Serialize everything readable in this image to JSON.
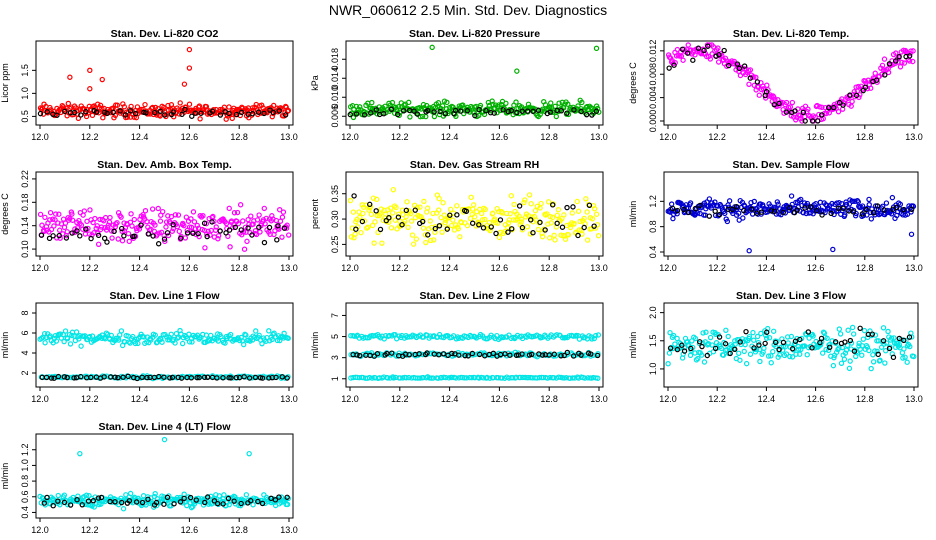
{
  "page_title": "NWR_060612  2.5 Min. Std. Dev. Diagnostics",
  "chart_data": [
    {
      "id": "co2",
      "type": "scatter",
      "title": "Stan. Dev. Li-820 CO2",
      "ylabel": "Licor ppm",
      "xlim": [
        12.0,
        13.0
      ],
      "ylim": [
        0.4,
        2.05
      ],
      "xticks": [
        "12.0",
        "12.2",
        "12.4",
        "12.6",
        "12.8",
        "13.0"
      ],
      "yticks": [
        "0.5",
        "1.0",
        "1.5"
      ],
      "series": [
        {
          "color": "#ff0000",
          "base": 0.62,
          "spread": 0.12,
          "n": 260
        },
        {
          "color": "#000000",
          "base": 0.58,
          "spread": 0.05,
          "n": 45
        }
      ],
      "outliers": [
        {
          "x": 12.2,
          "y": 1.5
        },
        {
          "x": 12.12,
          "y": 1.35
        },
        {
          "x": 12.25,
          "y": 1.3
        },
        {
          "x": 12.6,
          "y": 1.55
        },
        {
          "x": 12.6,
          "y": 1.95
        },
        {
          "x": 12.2,
          "y": 1.1
        },
        {
          "x": 12.58,
          "y": 1.2
        }
      ]
    },
    {
      "id": "pressure",
      "type": "scatter",
      "title": "Stan. Dev. Li-820 Pressure",
      "ylabel": "kPa",
      "xlim": [
        12.0,
        13.0
      ],
      "ylim": [
        0.005,
        0.021
      ],
      "xticks": [
        "12.0",
        "12.2",
        "12.4",
        "12.6",
        "12.8",
        "13.0"
      ],
      "yticks": [
        "0.006",
        "0.010",
        "0.014",
        "0.018"
      ],
      "series": [
        {
          "color": "#00b000",
          "base": 0.0075,
          "spread": 0.0012,
          "n": 260
        },
        {
          "color": "#000000",
          "base": 0.0068,
          "spread": 0.0006,
          "n": 45
        }
      ],
      "outliers": [
        {
          "x": 12.33,
          "y": 0.0205
        },
        {
          "x": 12.67,
          "y": 0.0155
        },
        {
          "x": 12.99,
          "y": 0.0203
        }
      ]
    },
    {
      "id": "temp",
      "type": "scatter",
      "title": "Stan. Dev. Li-820 Temp.",
      "ylabel": "degrees C",
      "xlim": [
        12.0,
        13.0
      ],
      "ylim": [
        0.0,
        0.013
      ],
      "xticks": [
        "12.0",
        "12.2",
        "12.4",
        "12.6",
        "12.8",
        "13.0"
      ],
      "yticks": [
        "0.000",
        "0.004",
        "0.008",
        "0.012"
      ],
      "series": [
        {
          "color": "#ff00ff",
          "base": 0.008,
          "spread": 0.002,
          "n": 240
        },
        {
          "color": "#000000",
          "base": 0.008,
          "spread": 0.0015,
          "n": 45
        }
      ],
      "outliers": []
    },
    {
      "id": "boxtemp",
      "type": "scatter",
      "title": "Stan. Dev. Amb. Box Temp.",
      "ylabel": "degrees C",
      "xlim": [
        12.0,
        13.0
      ],
      "ylim": [
        0.095,
        0.225
      ],
      "xticks": [
        "12.0",
        "12.2",
        "12.4",
        "12.6",
        "12.8",
        "13.0"
      ],
      "yticks": [
        "0.10",
        "0.14",
        "0.18",
        "0.22"
      ],
      "series": [
        {
          "color": "#ff00ff",
          "base": 0.14,
          "spread": 0.025,
          "n": 260
        },
        {
          "color": "#000000",
          "base": 0.13,
          "spread": 0.015,
          "n": 45
        }
      ],
      "outliers": []
    },
    {
      "id": "rh",
      "type": "scatter",
      "title": "Stan. Dev. Gas Stream RH",
      "ylabel": "percent",
      "xlim": [
        12.0,
        13.0
      ],
      "ylim": [
        0.235,
        0.385
      ],
      "xticks": [
        "12.0",
        "12.2",
        "12.4",
        "12.6",
        "12.8",
        "13.0"
      ],
      "yticks": [
        "0.25",
        "0.30",
        "0.35"
      ],
      "series": [
        {
          "color": "#ffff00",
          "base": 0.3,
          "spread": 0.035,
          "n": 260
        },
        {
          "color": "#000000",
          "base": 0.3,
          "spread": 0.03,
          "n": 45
        }
      ],
      "outliers": []
    },
    {
      "id": "sampleflow",
      "type": "scatter",
      "title": "Stan. Dev. Sample Flow",
      "ylabel": "ml/min",
      "xlim": [
        12.0,
        13.0
      ],
      "ylim": [
        0.4,
        1.6
      ],
      "xticks": [
        "12.0",
        "12.2",
        "12.4",
        "12.6",
        "12.8",
        "13.0"
      ],
      "yticks": [
        "0.4",
        "0.8",
        "1.2"
      ],
      "series": [
        {
          "color": "#0000d0",
          "base": 1.08,
          "spread": 0.12,
          "n": 280
        },
        {
          "color": "#000000",
          "base": 1.05,
          "spread": 0.08,
          "n": 40
        }
      ],
      "outliers": [
        {
          "x": 12.33,
          "y": 0.42
        },
        {
          "x": 12.67,
          "y": 0.44
        },
        {
          "x": 12.99,
          "y": 0.68
        }
      ]
    },
    {
      "id": "line1",
      "type": "scatter",
      "title": "Stan. Dev. Line 1 Flow",
      "ylabel": "ml/min",
      "xlim": [
        12.0,
        13.0
      ],
      "ylim": [
        1.0,
        8.6
      ],
      "xticks": [
        "12.0",
        "12.2",
        "12.4",
        "12.6",
        "12.8",
        "13.0"
      ],
      "yticks": [
        "2",
        "4",
        "6",
        "8"
      ],
      "series": [
        {
          "color": "#00e5e5",
          "base": 5.5,
          "spread": 0.5,
          "n": 200
        },
        {
          "color": "#00e5e5",
          "base": 1.6,
          "spread": 0.1,
          "n": 120
        },
        {
          "color": "#000000",
          "base": 1.55,
          "spread": 0.08,
          "n": 55
        }
      ],
      "outliers": []
    },
    {
      "id": "line2",
      "type": "scatter",
      "title": "Stan. Dev. Line 2 Flow",
      "ylabel": "ml/min",
      "xlim": [
        12.0,
        13.0
      ],
      "ylim": [
        0.6,
        7.8
      ],
      "xticks": [
        "12.0",
        "12.2",
        "12.4",
        "12.6",
        "12.8",
        "13.0"
      ],
      "yticks": [
        "1",
        "3",
        "5",
        "7"
      ],
      "series": [
        {
          "color": "#00e5e5",
          "base": 5.0,
          "spread": 0.2,
          "n": 140
        },
        {
          "color": "#00e5e5",
          "base": 3.3,
          "spread": 0.15,
          "n": 120
        },
        {
          "color": "#00e5e5",
          "base": 1.1,
          "spread": 0.05,
          "n": 120
        },
        {
          "color": "#000000",
          "base": 3.3,
          "spread": 0.15,
          "n": 55
        }
      ],
      "outliers": []
    },
    {
      "id": "line3",
      "type": "scatter",
      "title": "Stan. Dev. Line 3 Flow",
      "ylabel": "ml/min",
      "xlim": [
        12.0,
        13.0
      ],
      "ylim": [
        0.75,
        2.1
      ],
      "xticks": [
        "12.0",
        "12.2",
        "12.4",
        "12.6",
        "12.8",
        "13.0"
      ],
      "yticks": [
        "1.0",
        "1.5",
        "2.0"
      ],
      "series": [
        {
          "color": "#00e5e5",
          "base": 1.4,
          "spread": 0.25,
          "n": 260
        },
        {
          "color": "#000000",
          "base": 1.45,
          "spread": 0.2,
          "n": 45
        }
      ],
      "outliers": []
    },
    {
      "id": "line4",
      "type": "scatter",
      "title": "Stan. Dev. Line 4 (LT) Flow",
      "ylabel": "ml/min",
      "xlim": [
        12.0,
        13.0
      ],
      "ylim": [
        0.38,
        1.35
      ],
      "xticks": [
        "12.0",
        "12.2",
        "12.4",
        "12.6",
        "12.8",
        "13.0"
      ],
      "yticks": [
        "0.4",
        "0.6",
        "0.8",
        "1.0",
        "1.2"
      ],
      "series": [
        {
          "color": "#00e5e5",
          "base": 0.55,
          "spread": 0.06,
          "n": 260
        },
        {
          "color": "#000000",
          "base": 0.55,
          "spread": 0.05,
          "n": 45
        }
      ],
      "outliers": [
        {
          "x": 12.16,
          "y": 1.15
        },
        {
          "x": 12.5,
          "y": 1.33
        },
        {
          "x": 12.84,
          "y": 1.15
        }
      ]
    }
  ]
}
